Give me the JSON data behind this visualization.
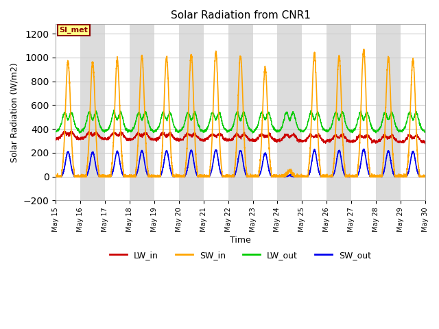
{
  "title": "Solar Radiation from CNR1",
  "xlabel": "Time",
  "ylabel": "Solar Radiation (W/m2)",
  "ylim": [
    -200,
    1280
  ],
  "yticks": [
    -200,
    0,
    200,
    400,
    600,
    800,
    1000,
    1200
  ],
  "annotation_text": "SI_met",
  "annotation_facecolor": "#FFFF88",
  "annotation_edgecolor": "#8B0000",
  "bg_band_color": "#DCDCDC",
  "line_colors": {
    "LW_in": "#CC0000",
    "SW_in": "#FFA500",
    "LW_out": "#00CC00",
    "SW_out": "#0000EE"
  },
  "legend_labels": [
    "LW_in",
    "SW_in",
    "LW_out",
    "SW_out"
  ],
  "n_days": 15,
  "start_day": 15,
  "points_per_day": 288
}
